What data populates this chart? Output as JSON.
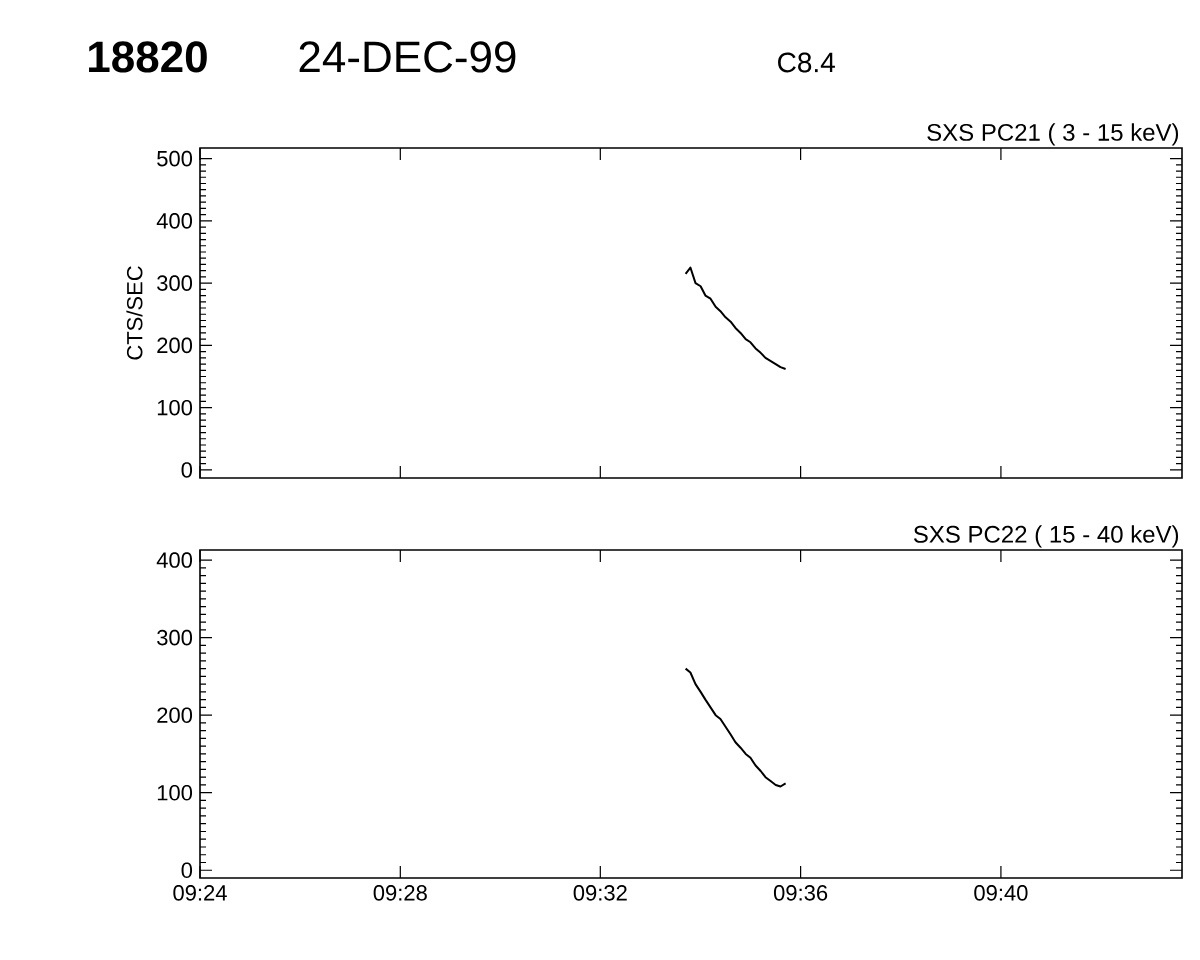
{
  "chart_data": [
    {
      "type": "line",
      "title": "18820",
      "subtitle": "24-DEC-99",
      "annotations": [
        "C8.4",
        "SXS PC21  (  3 - 15 keV)"
      ],
      "ylabel": "CTS/SEC",
      "x": [
        9.5617,
        9.5633,
        9.565,
        9.5667,
        9.5683,
        9.57,
        9.5717,
        9.5733,
        9.575,
        9.5767,
        9.5783,
        9.58,
        9.5817,
        9.5833,
        9.585,
        9.5867,
        9.5883,
        9.59,
        9.5917,
        9.5933,
        9.595
      ],
      "series": [
        {
          "color": "#000000",
          "values": [
            315,
            325,
            300,
            295,
            280,
            275,
            262,
            255,
            245,
            238,
            228,
            220,
            210,
            205,
            195,
            188,
            180,
            175,
            170,
            165,
            162
          ]
        }
      ],
      "xlim": [
        9.4,
        9.727
      ],
      "xticks": [
        {
          "value": 9.4,
          "label": null
        },
        {
          "value": 9.4667,
          "label": null
        },
        {
          "value": 9.5333,
          "label": null
        },
        {
          "value": 9.6,
          "label": null
        },
        {
          "value": 9.6667,
          "label": null
        }
      ],
      "ylim": [
        -13,
        517
      ],
      "yticks": [
        0,
        100,
        200,
        300,
        400,
        500
      ],
      "tick_labels": "y",
      "marker": "none",
      "line_style": "solid"
    },
    {
      "type": "line",
      "annotations": [
        "SXS PC22  ( 15 - 40 keV)"
      ],
      "x": [
        9.5617,
        9.5633,
        9.565,
        9.5667,
        9.5683,
        9.57,
        9.5717,
        9.5733,
        9.575,
        9.5767,
        9.5783,
        9.58,
        9.5817,
        9.5833,
        9.585,
        9.5867,
        9.5883,
        9.59,
        9.5917,
        9.5933,
        9.595
      ],
      "series": [
        {
          "color": "#000000",
          "values": [
            260,
            255,
            240,
            230,
            220,
            210,
            200,
            195,
            185,
            175,
            165,
            158,
            150,
            145,
            135,
            128,
            120,
            115,
            110,
            108,
            112
          ]
        }
      ],
      "xlim": [
        9.4,
        9.727
      ],
      "xticks": [
        {
          "value": 9.4,
          "label": "09:24"
        },
        {
          "value": 9.4667,
          "label": "09:28"
        },
        {
          "value": 9.5333,
          "label": "09:32"
        },
        {
          "value": 9.6,
          "label": "09:36"
        },
        {
          "value": 9.6667,
          "label": "09:40"
        }
      ],
      "ylim": [
        -10,
        413
      ],
      "yticks": [
        0,
        100,
        200,
        300,
        400
      ],
      "marker": "none",
      "line_style": "solid"
    }
  ]
}
